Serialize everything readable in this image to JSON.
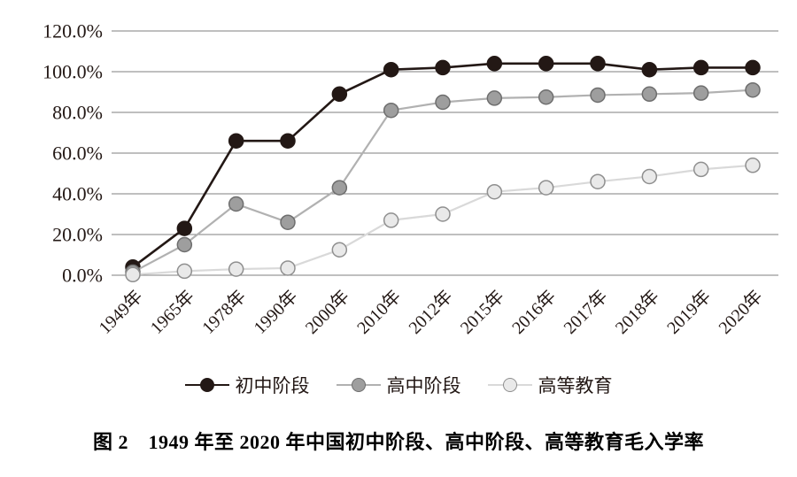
{
  "figure": {
    "caption": "图 2　1949 年至 2020 年中国初中阶段、高中阶段、高等教育毛入学率"
  },
  "chart_data": {
    "type": "line",
    "title": "",
    "xlabel": "",
    "ylabel": "",
    "categories": [
      "1949年",
      "1965年",
      "1978年",
      "1990年",
      "2000年",
      "2010年",
      "2012年",
      "2015年",
      "2016年",
      "2017年",
      "2018年",
      "2019年",
      "2020年"
    ],
    "series": [
      {
        "name": "初中阶段",
        "values": [
          4,
          23,
          66,
          66,
          89,
          101,
          102,
          104,
          104,
          104,
          101,
          102,
          102
        ],
        "line_color": "#231815",
        "dot_fill": "#231815",
        "dot_stroke": "#231815"
      },
      {
        "name": "高中阶段",
        "values": [
          1.5,
          15,
          35,
          26,
          43,
          81,
          85,
          87,
          87.5,
          88.5,
          89,
          89.5,
          91
        ],
        "line_color": "#b1b1b1",
        "dot_fill": "#9e9e9e",
        "dot_stroke": "#6e6e6e"
      },
      {
        "name": "高等教育",
        "values": [
          0.3,
          2,
          3,
          3.5,
          12.5,
          27,
          30,
          41,
          43,
          46,
          48.5,
          52,
          54
        ],
        "line_color": "#d9d9d9",
        "dot_fill": "#e9e9e9",
        "dot_stroke": "#8f8f8f"
      }
    ],
    "y_axis": {
      "min": 0,
      "max": 120,
      "step": 20,
      "tick_labels": [
        "0.0%",
        "20.0%",
        "40.0%",
        "60.0%",
        "80.0%",
        "100.0%",
        "120.0%"
      ]
    },
    "grid": true,
    "gridline_color": "#7f7f7f",
    "legend_position": "bottom",
    "ylim": [
      0,
      120
    ]
  }
}
